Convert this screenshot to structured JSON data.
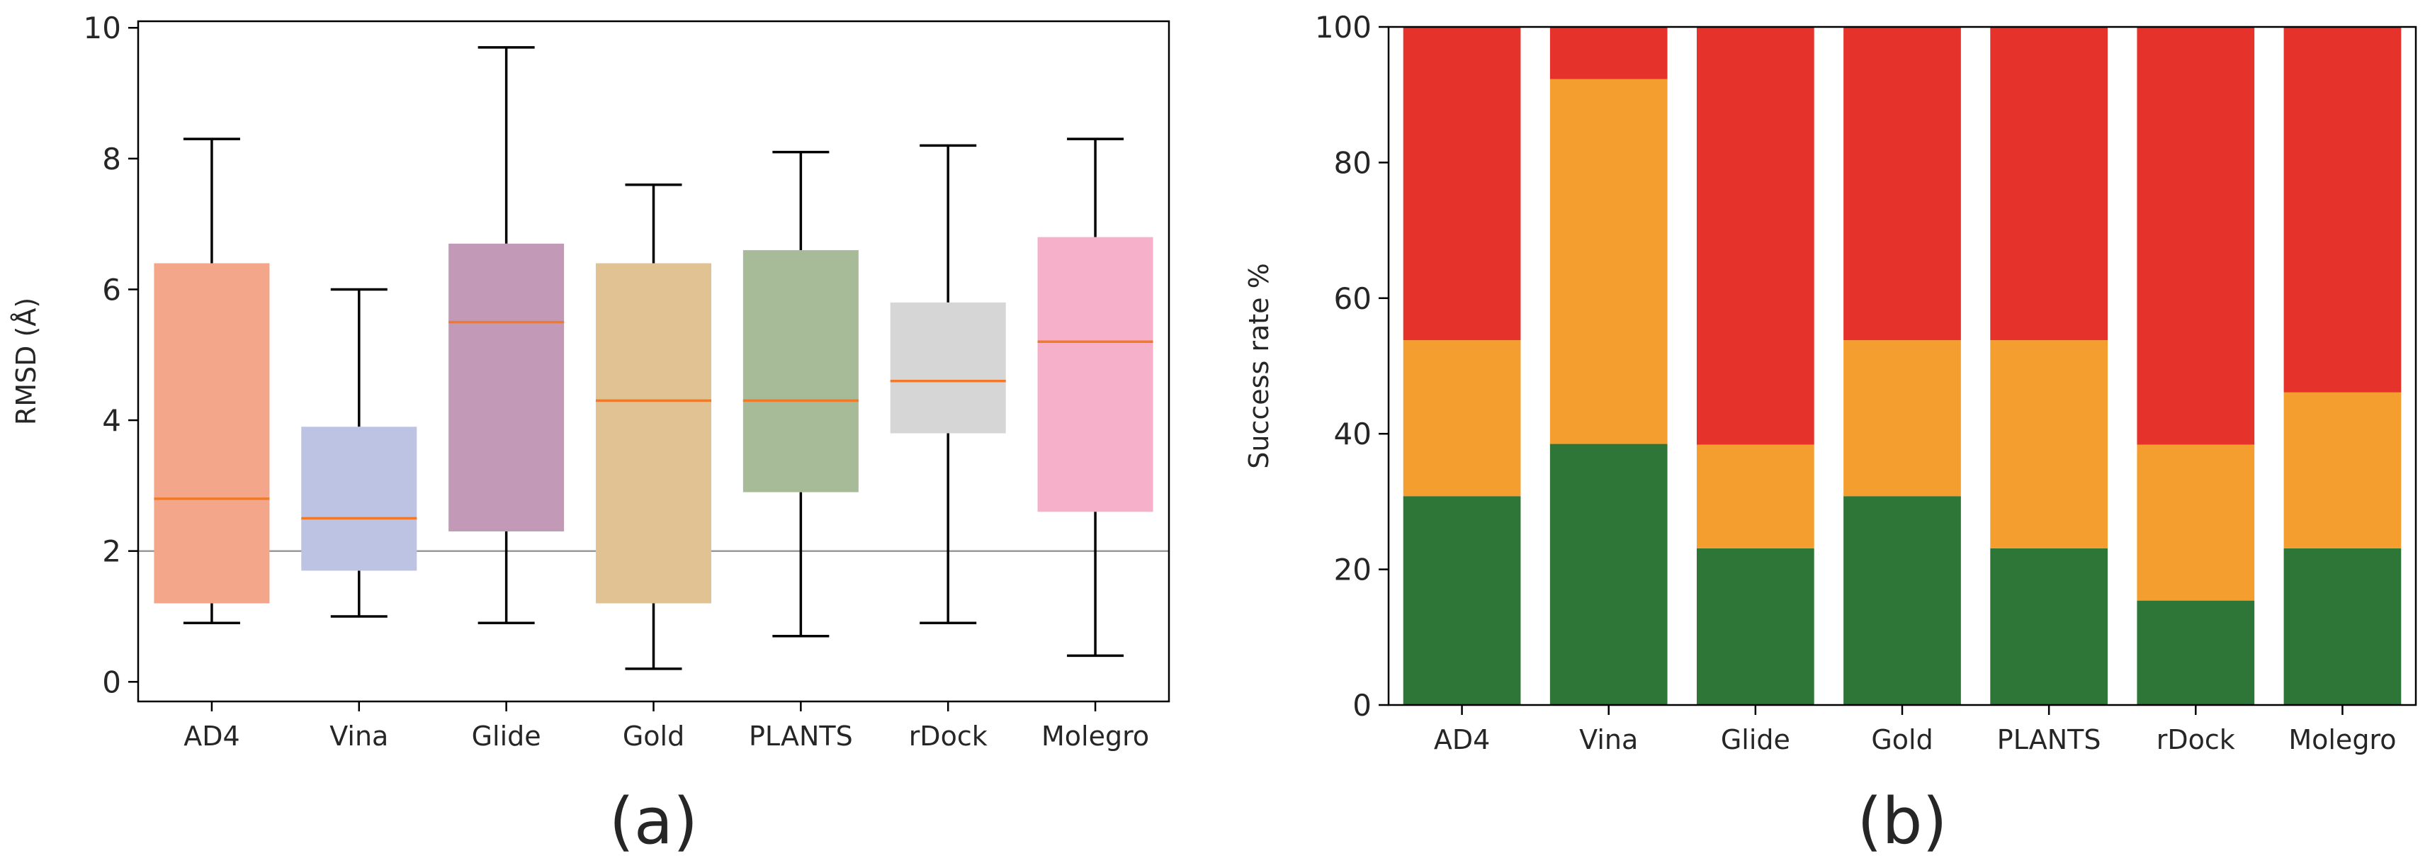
{
  "chart_data": [
    {
      "type": "box",
      "panel_label": "(a)",
      "ylabel": "RMSD (Å)",
      "ylim": [
        -0.3,
        10.1
      ],
      "yticks": [
        0,
        2,
        4,
        6,
        8,
        10
      ],
      "reference_line": 2,
      "median_color": "#f07a2a",
      "categories": [
        "AD4",
        "Vina",
        "Glide",
        "Gold",
        "PLANTS",
        "rDock",
        "Molegro"
      ],
      "colors": [
        "#f4a68a",
        "#bcc3e3",
        "#c29ab8",
        "#e1c393",
        "#a8bb98",
        "#d6d6d6",
        "#f7b0c9"
      ],
      "boxes": [
        {
          "whisker_low": 0.9,
          "q1": 1.2,
          "median": 2.8,
          "q3": 6.4,
          "whisker_high": 8.3
        },
        {
          "whisker_low": 1.0,
          "q1": 1.7,
          "median": 2.5,
          "q3": 3.9,
          "whisker_high": 6.0
        },
        {
          "whisker_low": 0.9,
          "q1": 2.3,
          "median": 5.5,
          "q3": 6.7,
          "whisker_high": 9.7
        },
        {
          "whisker_low": 0.2,
          "q1": 1.2,
          "median": 4.3,
          "q3": 6.4,
          "whisker_high": 7.6
        },
        {
          "whisker_low": 0.7,
          "q1": 2.9,
          "median": 4.3,
          "q3": 6.6,
          "whisker_high": 8.1
        },
        {
          "whisker_low": 0.9,
          "q1": 3.8,
          "median": 4.6,
          "q3": 5.8,
          "whisker_high": 8.2
        },
        {
          "whisker_low": 0.4,
          "q1": 2.6,
          "median": 5.2,
          "q3": 6.8,
          "whisker_high": 8.3
        }
      ]
    },
    {
      "type": "bar",
      "stacked": true,
      "panel_label": "(b)",
      "ylabel": "Success rate %",
      "ylim": [
        0,
        100
      ],
      "yticks": [
        0,
        20,
        40,
        60,
        80,
        100
      ],
      "categories": [
        "AD4",
        "Vina",
        "Glide",
        "Gold",
        "PLANTS",
        "rDock",
        "Molegro"
      ],
      "series": [
        {
          "color": "#2e7538",
          "values": [
            30.8,
            38.5,
            23.1,
            30.8,
            23.1,
            15.4,
            23.1
          ]
        },
        {
          "color": "#f39e2f",
          "values": [
            23.0,
            53.8,
            15.3,
            23.0,
            30.7,
            23.0,
            23.0
          ]
        },
        {
          "color": "#e5322b",
          "values": [
            46.2,
            7.7,
            61.6,
            46.2,
            46.2,
            61.6,
            53.9
          ]
        }
      ]
    }
  ]
}
